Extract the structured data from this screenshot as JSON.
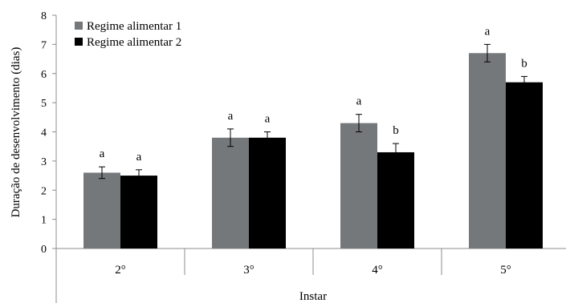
{
  "chart_data": {
    "type": "bar",
    "title": "",
    "xlabel": "Instar",
    "ylabel": "Duração de desenvolvimento (dias)",
    "ylim": [
      0,
      8
    ],
    "yticks": [
      "0",
      "1",
      "2",
      "3",
      "4",
      "5",
      "6",
      "7",
      "8"
    ],
    "categories": [
      "2°",
      "3°",
      "4°",
      "5°"
    ],
    "grid": false,
    "legend_position": "top-left",
    "series": [
      {
        "name": "Regime alimentar 1",
        "color": "#75787b",
        "values": [
          2.6,
          3.8,
          4.3,
          6.7
        ],
        "errors": [
          0.2,
          0.3,
          0.3,
          0.3
        ],
        "labels": [
          "a",
          "a",
          "a",
          "a"
        ]
      },
      {
        "name": "Regime alimentar 2",
        "color": "#000000",
        "values": [
          2.5,
          3.8,
          3.3,
          5.7
        ],
        "errors": [
          0.2,
          0.2,
          0.3,
          0.2
        ],
        "labels": [
          "a",
          "a",
          "b",
          "b"
        ]
      }
    ]
  }
}
